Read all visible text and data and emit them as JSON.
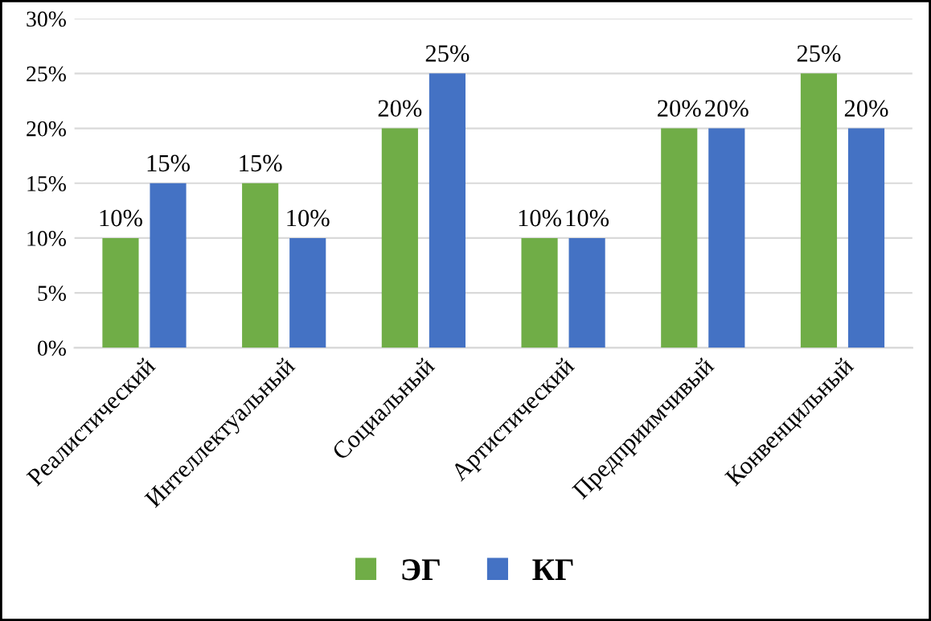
{
  "chart_data": {
    "type": "bar",
    "categories": [
      "Реалистический",
      "Интеллектуальный",
      "Социальный",
      "Артистический",
      "Предприимчивый",
      "Конвенцильный"
    ],
    "series": [
      {
        "name": "ЭГ",
        "color": "#70ad47",
        "values": [
          10,
          15,
          20,
          10,
          20,
          25
        ],
        "value_labels": [
          "10%",
          "15%",
          "20%",
          "10%",
          "20%",
          "25%"
        ]
      },
      {
        "name": "КГ",
        "color": "#4472c4",
        "values": [
          15,
          10,
          25,
          10,
          20,
          20
        ],
        "value_labels": [
          "15%",
          "10%",
          "25%",
          "10%",
          "20%",
          "20%"
        ]
      }
    ],
    "ylim": [
      0,
      30
    ],
    "yticks": [
      {
        "value": 0,
        "label": "0%"
      },
      {
        "value": 5,
        "label": "5%"
      },
      {
        "value": 10,
        "label": "10%"
      },
      {
        "value": 15,
        "label": "15%"
      },
      {
        "value": 20,
        "label": "20%"
      },
      {
        "value": 25,
        "label": "25%"
      },
      {
        "value": 30,
        "label": "30%"
      }
    ],
    "grid": "y",
    "legend": "bottom"
  }
}
